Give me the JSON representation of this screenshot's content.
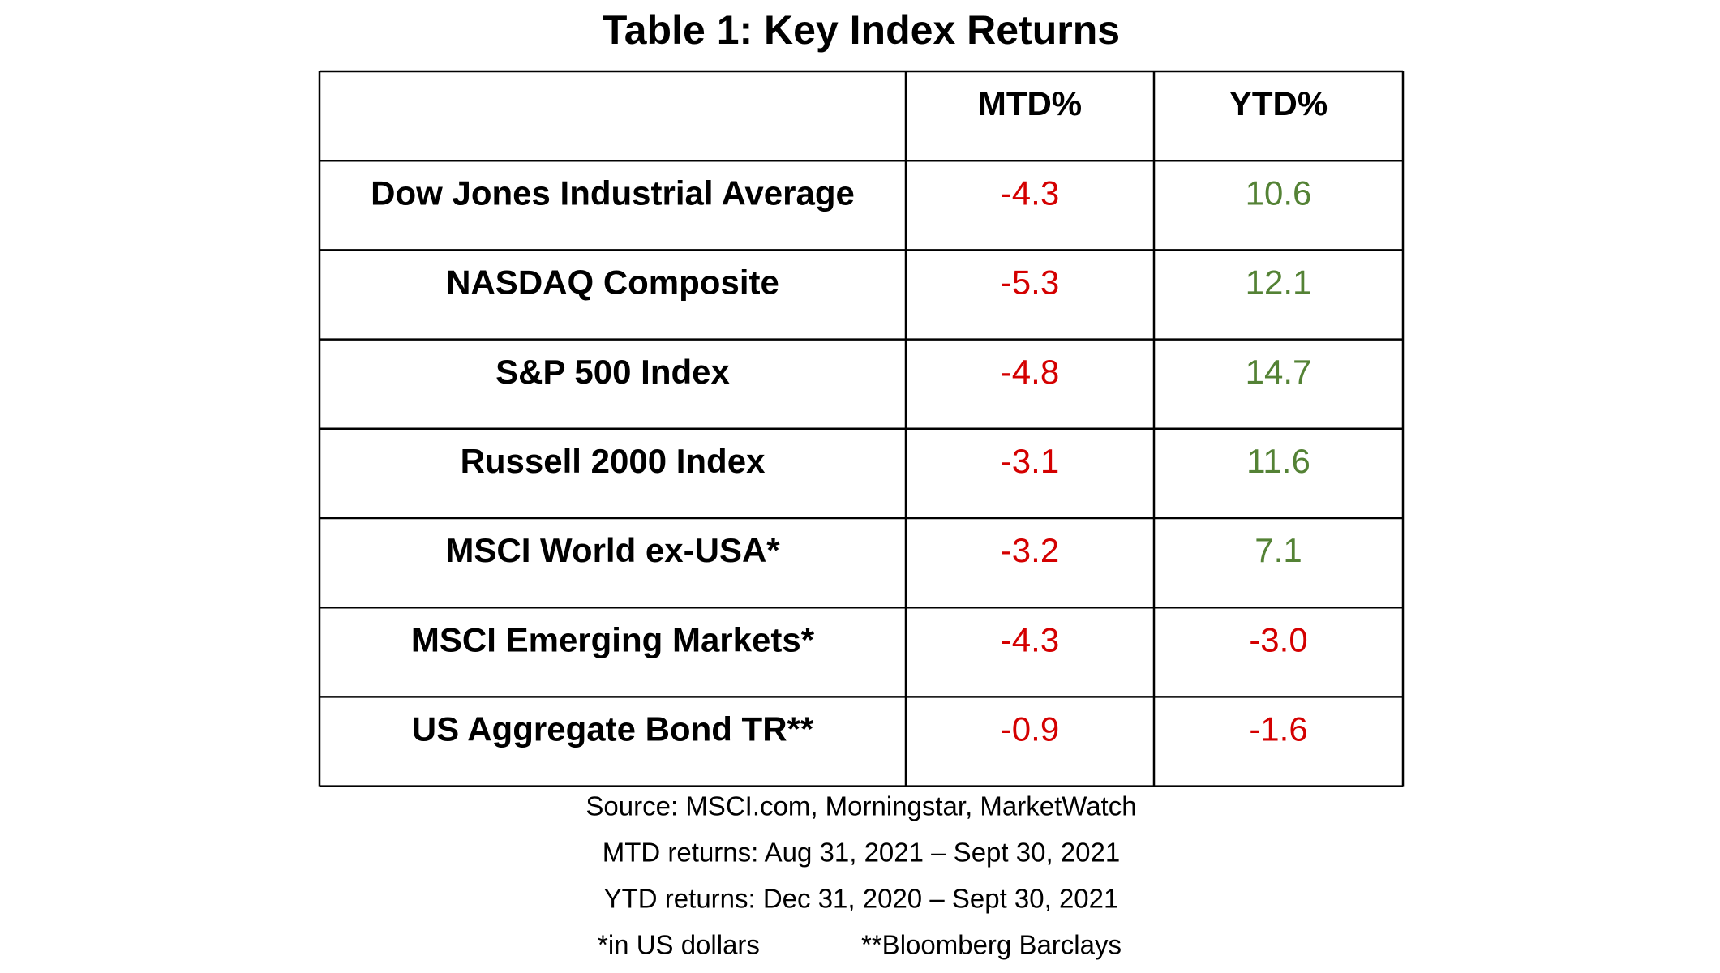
{
  "title": "Table 1: Key Index Returns",
  "table": {
    "header": [
      "MTD%",
      "YTD%"
    ],
    "rows": [
      [
        "Dow Jones Industrial Average",
        "-4.3",
        "10.6"
      ],
      [
        "NASDAQ Composite",
        "-5.3",
        "12.1"
      ],
      [
        "S&P 500 Index",
        "-4.8",
        "14.7"
      ],
      [
        "Russell 2000 Index",
        "-3.1",
        "11.6"
      ],
      [
        "MSCI World ex-USA*",
        "-3.2",
        "7.1"
      ],
      [
        "MSCI Emerging Markets*",
        "-4.3",
        "-3.0"
      ],
      [
        "US Aggregate Bond TR**",
        "-0.9",
        "-1.6"
      ]
    ],
    "negative_color": "#d40000",
    "positive_color": "#548235"
  },
  "notes": [
    "Source: MSCI.com, Morningstar, MarketWatch",
    "MTD returns: Aug 31, 2021 – Sept 30, 2021",
    "YTD returns: Dec 31, 2020 – Sept 30, 2021"
  ],
  "footnotes": [
    "*in US dollars",
    "**Bloomberg Barclays"
  ]
}
